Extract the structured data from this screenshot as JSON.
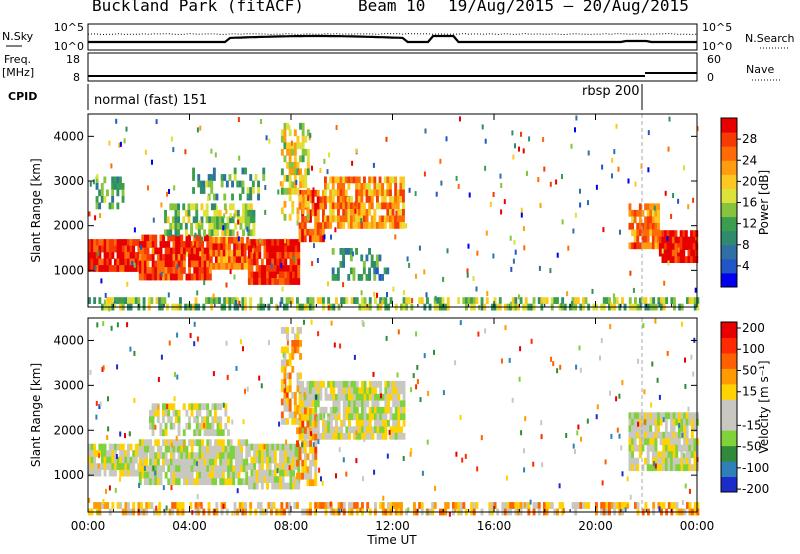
{
  "header": {
    "site": "Buckland Park (fitACF)",
    "beam": "Beam 10",
    "dates": "19/Aug/2015 – 20/Aug/2015"
  },
  "strips": {
    "noise": {
      "left_label": "N.Sky",
      "right_label": "N.Search",
      "left_ticks": [
        "10^5",
        "10^0"
      ],
      "right_ticks": [
        "10^5",
        "10^0"
      ]
    },
    "freq": {
      "left_label": "Freq. [MHz]",
      "right_label": "Nave",
      "left_ticks": [
        "18",
        "8"
      ],
      "right_ticks": [
        "60",
        "0"
      ]
    },
    "cpid": {
      "left_label": "CPID",
      "segments": [
        "normal (fast) 151",
        "rbsp 200"
      ]
    }
  },
  "chart_data": [
    {
      "type": "heatmap",
      "ylabel": "Slant Range [km]",
      "xlabel": "Time UT",
      "x_ticks": [
        "00:00",
        "04:00",
        "08:00",
        "12:00",
        "16:00",
        "20:00",
        "00:00"
      ],
      "y_ticks": [
        1000,
        2000,
        3000,
        4000
      ],
      "ylim": [
        180,
        4500
      ],
      "colorbar": {
        "label": "Power [dB]",
        "ticks": [
          4,
          8,
          12,
          16,
          20,
          24,
          28
        ],
        "range": [
          0,
          32
        ],
        "colors": [
          "#0000ee",
          "#2255c8",
          "#2e6fa6",
          "#2f8a6e",
          "#3a9e4e",
          "#86c43e",
          "#dde23a",
          "#ffc820",
          "#ff9c10",
          "#ff6a08",
          "#f53a04",
          "#e80000"
        ]
      },
      "regions": [
        {
          "t": [
            0.0,
            2.3
          ],
          "r": [
            1050,
            1700
          ],
          "level": 0.92,
          "density": 0.95
        },
        {
          "t": [
            2.0,
            4.8
          ],
          "r": [
            900,
            1800
          ],
          "level": 0.9,
          "density": 0.92
        },
        {
          "t": [
            4.8,
            6.3
          ],
          "r": [
            1050,
            1750
          ],
          "level": 0.8,
          "density": 0.9
        },
        {
          "t": [
            6.3,
            8.3
          ],
          "r": [
            800,
            1700
          ],
          "level": 0.93,
          "density": 0.95
        },
        {
          "t": [
            8.3,
            9.3
          ],
          "r": [
            1700,
            2800
          ],
          "level": 0.85,
          "density": 0.85
        },
        {
          "t": [
            9.3,
            12.4
          ],
          "r": [
            2000,
            3100
          ],
          "level": 0.72,
          "density": 0.8
        },
        {
          "t": [
            3.0,
            6.5
          ],
          "r": [
            1900,
            2500
          ],
          "level": 0.45,
          "density": 0.6
        },
        {
          "t": [
            0.3,
            1.4
          ],
          "r": [
            2500,
            3100
          ],
          "level": 0.35,
          "density": 0.5
        },
        {
          "t": [
            4.0,
            7.0
          ],
          "r": [
            2600,
            3300
          ],
          "level": 0.35,
          "density": 0.35
        },
        {
          "t": [
            7.6,
            8.7
          ],
          "r": [
            2200,
            4300
          ],
          "level": 0.55,
          "density": 0.55
        },
        {
          "t": [
            9.5,
            11.8
          ],
          "r": [
            850,
            1500
          ],
          "level": 0.3,
          "density": 0.4
        },
        {
          "t": [
            21.3,
            22.5
          ],
          "r": [
            1600,
            2500
          ],
          "level": 0.75,
          "density": 0.8
        },
        {
          "t": [
            22.5,
            24.0
          ],
          "r": [
            1200,
            1900
          ],
          "level": 0.95,
          "density": 0.95
        },
        {
          "t": [
            0.0,
            24.0
          ],
          "r": [
            180,
            400
          ],
          "level": 0.45,
          "density": 0.55
        }
      ]
    },
    {
      "type": "heatmap",
      "ylabel": "Slant Range [km]",
      "xlabel": "Time UT",
      "x_ticks": [
        "00:00",
        "04:00",
        "08:00",
        "12:00",
        "16:00",
        "20:00",
        "00:00"
      ],
      "y_ticks": [
        1000,
        2000,
        3000,
        4000
      ],
      "ylim": [
        180,
        4500
      ],
      "colorbar": {
        "label": "Velocity [m s⁻¹]",
        "ticks": [
          200,
          100,
          50,
          15,
          -15,
          -50,
          -100,
          -200
        ],
        "colors": [
          "#1c2cc8",
          "#2f7fb8",
          "#2f8a3a",
          "#7fd23a",
          "#c8c8c0",
          "#c8c8c0",
          "#ffd200",
          "#ff9a00",
          "#ff6000",
          "#ff2a00",
          "#e80000"
        ]
      },
      "regions": [
        {
          "t": [
            0.0,
            2.3
          ],
          "r": [
            1000,
            1700
          ],
          "level": 0.45,
          "density": 0.9
        },
        {
          "t": [
            2.0,
            6.3
          ],
          "r": [
            900,
            1800
          ],
          "level": 0.45,
          "density": 0.9
        },
        {
          "t": [
            6.3,
            8.3
          ],
          "r": [
            800,
            1700
          ],
          "level": 0.45,
          "density": 0.9
        },
        {
          "t": [
            8.3,
            12.4
          ],
          "r": [
            1900,
            3100
          ],
          "level": 0.45,
          "density": 0.85
        },
        {
          "t": [
            7.6,
            8.4
          ],
          "r": [
            2200,
            4300
          ],
          "level": 0.62,
          "density": 0.6
        },
        {
          "t": [
            8.2,
            9.0
          ],
          "r": [
            900,
            2500
          ],
          "level": 0.65,
          "density": 0.6
        },
        {
          "t": [
            2.3,
            5.5
          ],
          "r": [
            2000,
            2600
          ],
          "level": 0.45,
          "density": 0.6
        },
        {
          "t": [
            21.3,
            24.0
          ],
          "r": [
            1200,
            2400
          ],
          "level": 0.45,
          "density": 0.85
        },
        {
          "t": [
            0.0,
            24.0
          ],
          "r": [
            180,
            400
          ],
          "level": 0.62,
          "density": 0.6
        }
      ]
    }
  ]
}
